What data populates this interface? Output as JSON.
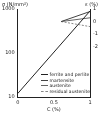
{
  "chart_data": {
    "type": "line",
    "x_label": "C (%)",
    "y_label": "σ (N/mm²)",
    "y2_label": "ε (%)",
    "xlim": [
      0,
      1
    ],
    "xticks": [
      0,
      0.5,
      1
    ],
    "ylim": [
      10,
      1000
    ],
    "yticks": [
      10,
      100,
      1000
    ],
    "log": "y",
    "y2lim": [
      -6,
      1
    ],
    "y2ticks": [
      -2,
      -1,
      0,
      1
    ],
    "grid": false,
    "legend": "lower right",
    "series": [
      {
        "name": "ferrite and perlite",
        "color": "#222222",
        "line_style": "solid",
        "x": [
          0,
          1
        ],
        "values": [
          12,
          900
        ]
      },
      {
        "name": "martensite",
        "color": "#444444",
        "line_style": "solid",
        "axis": "y2",
        "x": [
          0.6,
          1
        ],
        "values": [
          0,
          0.8
        ]
      },
      {
        "name": "austenite",
        "color": "#666666",
        "line_style": "solid",
        "axis": "y2",
        "x": [
          0.6,
          1
        ],
        "values": [
          0,
          0.3
        ]
      },
      {
        "name": "residual austenite",
        "color": "#888888",
        "line_style": "dashed",
        "axis": "y2",
        "x": [
          0.6,
          1
        ],
        "values": [
          0,
          -0.4
        ]
      }
    ]
  }
}
